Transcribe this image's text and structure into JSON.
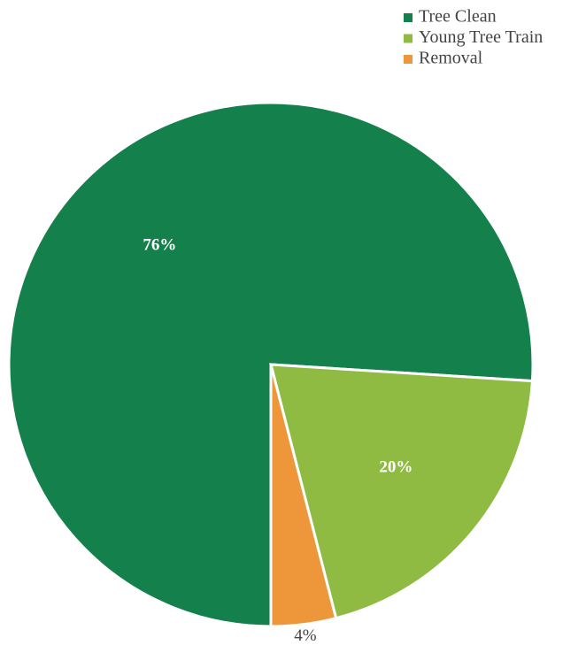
{
  "chart_data": {
    "type": "pie",
    "categories": [
      "Tree Clean",
      "Young Tree Train",
      "Removal"
    ],
    "values": [
      76,
      20,
      4
    ],
    "value_labels": [
      "76%",
      "20%",
      "4%"
    ],
    "colors": [
      "#14804b",
      "#8fbb43",
      "#ed963a"
    ],
    "start_angle": 180,
    "legend": "top-right"
  }
}
